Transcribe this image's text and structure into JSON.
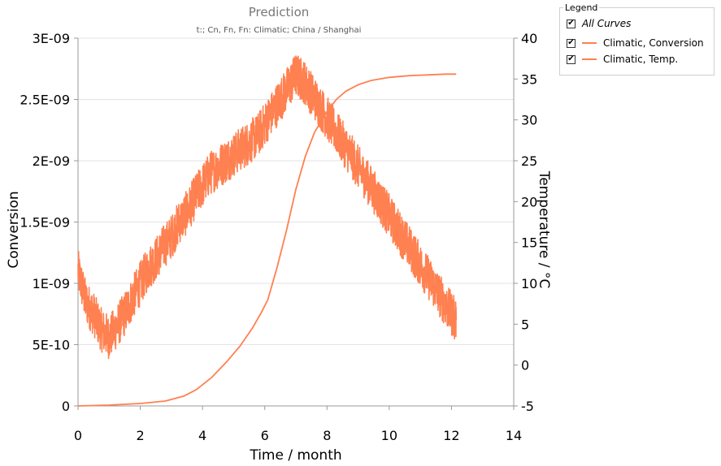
{
  "chart_data": {
    "type": "line",
    "title": "Prediction",
    "subtitle": "t:; Cn, Fn, Fn: Climatic; China / Shanghai",
    "xlabel": "Time / month",
    "ylabel": "Conversion",
    "y2label": "Temperature / °C",
    "xlim": [
      0,
      14
    ],
    "ylim": [
      0,
      3e-09
    ],
    "y2lim": [
      -5,
      40
    ],
    "xticks": [
      "0",
      "2",
      "4",
      "6",
      "8",
      "10",
      "12",
      "14"
    ],
    "yticks": [
      "0",
      "5E-10",
      "1E-09",
      "1.5E-09",
      "2E-09",
      "2.5E-09",
      "3E-09"
    ],
    "y2ticks": [
      "-5",
      "0",
      "5",
      "10",
      "15",
      "20",
      "25",
      "30",
      "35",
      "40"
    ],
    "grid": true,
    "series": [
      {
        "name": "Climatic, Conversion",
        "axis": "left",
        "color": "#ff8050",
        "x": [
          0.0,
          0.25,
          0.5,
          0.75,
          1.0,
          1.25,
          1.5,
          1.75,
          2.0,
          2.25,
          2.5,
          2.75,
          3.0,
          3.25,
          3.5,
          3.75,
          4.0,
          4.25,
          4.5,
          4.75,
          5.0,
          5.25,
          5.5,
          5.75,
          6.0,
          6.25,
          6.5,
          6.75,
          7.0,
          7.25,
          7.5,
          7.75,
          8.0,
          8.25,
          8.5,
          8.75,
          9.0,
          9.25,
          9.5,
          9.75,
          10.0,
          10.25,
          10.5,
          10.75,
          11.0,
          11.25,
          11.5,
          11.75,
          12.0,
          12.15
        ],
        "y": [
          1.1e-09,
          8.5e-10,
          7.5e-10,
          6.2e-10,
          5.6e-10,
          6.5e-10,
          7.5e-10,
          8.8e-10,
          1e-09,
          1.12e-09,
          1.2e-09,
          1.3e-09,
          1.38e-09,
          1.5e-09,
          1.58e-09,
          1.7e-09,
          1.8e-09,
          1.9e-09,
          1.95e-09,
          2e-09,
          2.05e-09,
          2.1e-09,
          2.15e-09,
          2.2e-09,
          2.3e-09,
          2.4e-09,
          2.5e-09,
          2.6e-09,
          2.7e-09,
          2.65e-09,
          2.55e-09,
          2.45e-09,
          2.35e-09,
          2.25e-09,
          2.15e-09,
          2.05e-09,
          1.95e-09,
          1.85e-09,
          1.75e-09,
          1.65e-09,
          1.55e-09,
          1.45e-09,
          1.35e-09,
          1.25e-09,
          1.15e-09,
          1.05e-09,
          9.5e-10,
          8.5e-10,
          7.5e-10,
          7e-10
        ],
        "noise": 1.8e-10
      },
      {
        "name": "Climatic, Temp.",
        "axis": "right",
        "color": "#ff8050",
        "x": [
          0,
          1,
          2,
          2.8,
          3.4,
          3.8,
          4.3,
          4.8,
          5.2,
          5.6,
          5.9,
          6.1,
          6.4,
          6.7,
          7.0,
          7.3,
          7.6,
          8.0,
          8.3,
          8.6,
          9.0,
          9.4,
          10.0,
          10.6,
          11.2,
          11.8,
          12.15
        ],
        "y": [
          -5,
          -4.9,
          -4.7,
          -4.4,
          -3.8,
          -3,
          -1.5,
          0.5,
          2.3,
          4.5,
          6.5,
          8,
          12,
          16.5,
          21.5,
          25.5,
          28.5,
          31,
          32.5,
          33.5,
          34.3,
          34.8,
          35.2,
          35.4,
          35.5,
          35.6,
          35.6
        ]
      }
    ],
    "legend": {
      "title": "Legend",
      "position": "top-right",
      "all_label": "All Curves",
      "all_checked": true,
      "items": [
        {
          "label": "Climatic, Conversion",
          "checked": true
        },
        {
          "label": "Climatic, Temp.",
          "checked": true
        }
      ]
    }
  }
}
